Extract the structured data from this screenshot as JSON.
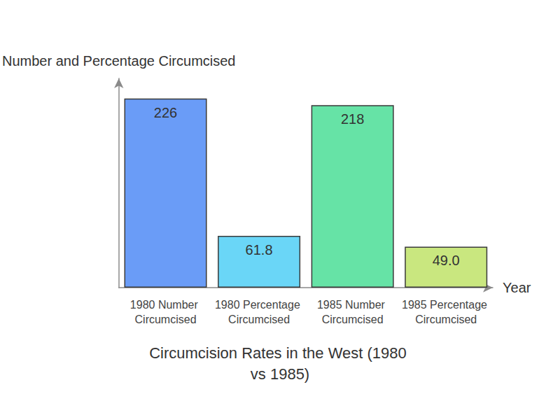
{
  "chart_data": {
    "type": "bar",
    "title": "Circumcision Rates in the West (1980 vs 1985)",
    "x_label": "Year",
    "y_label": "Number and Percentage Circumcised",
    "categories": [
      "1980 Number Circumcised",
      "1980 Percentage Circumcised",
      "1985 Number Circumcised",
      "1985 Percentage Circumcised"
    ],
    "values": [
      226,
      61.8,
      218,
      49.0
    ],
    "value_labels": [
      "226",
      "61.8",
      "218",
      "49.0"
    ],
    "colors": [
      "#6a9cf7",
      "#6ad6f7",
      "#66e3a6",
      "#c9e77f"
    ],
    "ylim": [
      0,
      250
    ],
    "data_labels": true,
    "grid": false,
    "tick_labels": "x"
  }
}
